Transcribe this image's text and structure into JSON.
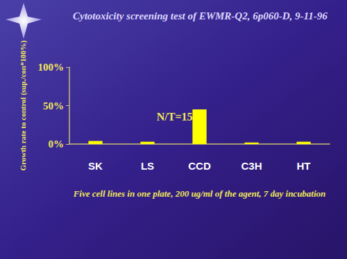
{
  "chart_data": {
    "type": "bar",
    "title": "Cytotoxicity screening test of EWMR-Q2, 6p060-D, 9-11-96",
    "x_label": "Five cell lines in one plate, 200 ug/ml of the agent, 7 day incubation",
    "y_label": "Growth rate to control (sup./con*100%)",
    "categories": [
      "SK",
      "LS",
      "CCD",
      "C3H",
      "HT"
    ],
    "values": [
      4,
      3,
      45,
      2,
      3
    ],
    "color": "#ffff00",
    "ylim": [
      0,
      100
    ],
    "yticks": [
      {
        "value": 0,
        "label": "0%"
      },
      {
        "value": 50,
        "label": "50%"
      },
      {
        "value": 100,
        "label": "100%"
      }
    ],
    "grid": false,
    "annotations": [
      {
        "text": "N/T=15",
        "category": "CCD"
      }
    ]
  }
}
